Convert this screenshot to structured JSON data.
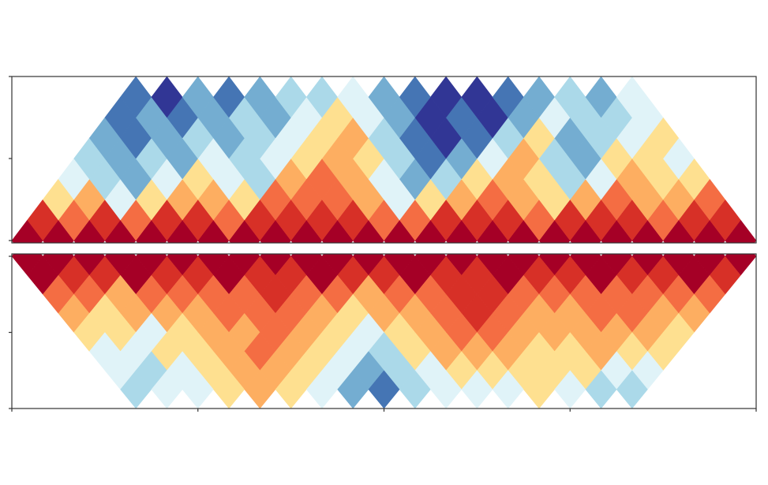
{
  "chart_data": {
    "type": "heatmap",
    "colors": [
      "#313695",
      "#4575b4",
      "#74add1",
      "#abd9e9",
      "#e0f3f8",
      "#fee090",
      "#fdae61",
      "#f46d43",
      "#d73027",
      "#a50026"
    ],
    "xlim": [
      0,
      4
    ],
    "xticks": [
      0,
      1,
      2,
      3,
      4
    ],
    "panels": [
      {
        "ylim": [
          0,
          8
        ],
        "yticks": [
          0,
          4,
          8
        ],
        "direction": "up",
        "diagonals": [
          [
            9,
            9,
            9,
            9,
            9,
            9,
            9,
            9,
            9,
            9,
            9,
            9,
            9,
            9,
            9,
            9,
            9,
            9,
            9,
            9,
            9,
            9,
            9,
            9
          ],
          [
            8,
            7,
            8,
            7,
            8,
            8,
            7,
            8,
            8,
            8,
            8,
            7,
            7,
            8,
            8,
            8,
            7,
            8,
            8,
            8,
            7,
            8,
            8
          ],
          [
            5,
            6,
            4,
            5,
            6,
            6,
            5,
            7,
            7,
            7,
            6,
            4,
            5,
            6,
            7,
            6,
            5,
            6,
            7,
            6,
            6,
            7
          ],
          [
            4,
            3,
            2,
            4,
            5,
            4,
            3,
            6,
            7,
            6,
            4,
            2,
            3,
            5,
            6,
            5,
            3,
            4,
            6,
            5,
            5
          ],
          [
            3,
            2,
            3,
            2,
            4,
            3,
            4,
            5,
            6,
            5,
            3,
            1,
            2,
            4,
            6,
            3,
            2,
            5,
            5,
            4
          ],
          [
            2,
            1,
            2,
            3,
            2,
            3,
            4,
            5,
            6,
            3,
            1,
            0,
            1,
            3,
            5,
            2,
            3,
            4,
            5
          ],
          [
            1,
            2,
            1,
            2,
            3,
            2,
            4,
            5,
            4,
            2,
            0,
            1,
            0,
            2,
            4,
            3,
            3,
            4
          ],
          [
            1,
            0,
            2,
            1,
            2,
            3,
            3,
            4,
            2,
            1,
            0,
            0,
            1,
            2,
            3,
            2,
            4
          ]
        ]
      },
      {
        "ylim": [
          0,
          8
        ],
        "yticks": [
          0,
          4,
          8
        ],
        "direction": "down",
        "diagonals": [
          [
            9,
            9,
            9,
            9,
            9,
            9,
            9,
            9,
            9,
            9,
            9,
            9,
            9,
            9,
            9,
            9,
            9,
            9,
            9,
            9,
            9,
            9,
            9,
            9
          ],
          [
            9,
            8,
            8,
            9,
            8,
            8,
            9,
            8,
            8,
            9,
            8,
            8,
            9,
            8,
            8,
            9,
            8,
            8,
            9,
            8,
            8,
            9,
            8
          ],
          [
            7,
            7,
            6,
            7,
            7,
            7,
            7,
            8,
            7,
            7,
            6,
            7,
            7,
            8,
            8,
            7,
            7,
            7,
            7,
            7,
            7,
            7
          ],
          [
            6,
            5,
            6,
            6,
            6,
            7,
            7,
            7,
            6,
            5,
            6,
            6,
            7,
            8,
            7,
            6,
            6,
            7,
            7,
            6,
            6
          ],
          [
            5,
            5,
            4,
            5,
            6,
            6,
            7,
            6,
            5,
            4,
            5,
            6,
            7,
            7,
            6,
            6,
            6,
            6,
            6,
            5
          ],
          [
            4,
            4,
            5,
            5,
            6,
            7,
            6,
            5,
            4,
            3,
            5,
            6,
            6,
            6,
            5,
            5,
            6,
            5,
            5
          ],
          [
            4,
            3,
            4,
            5,
            6,
            6,
            5,
            4,
            2,
            3,
            4,
            5,
            5,
            5,
            5,
            5,
            4,
            4
          ],
          [
            3,
            4,
            4,
            5,
            6,
            5,
            4,
            2,
            1,
            3,
            4,
            4,
            4,
            5,
            4,
            3,
            3
          ]
        ]
      }
    ]
  }
}
